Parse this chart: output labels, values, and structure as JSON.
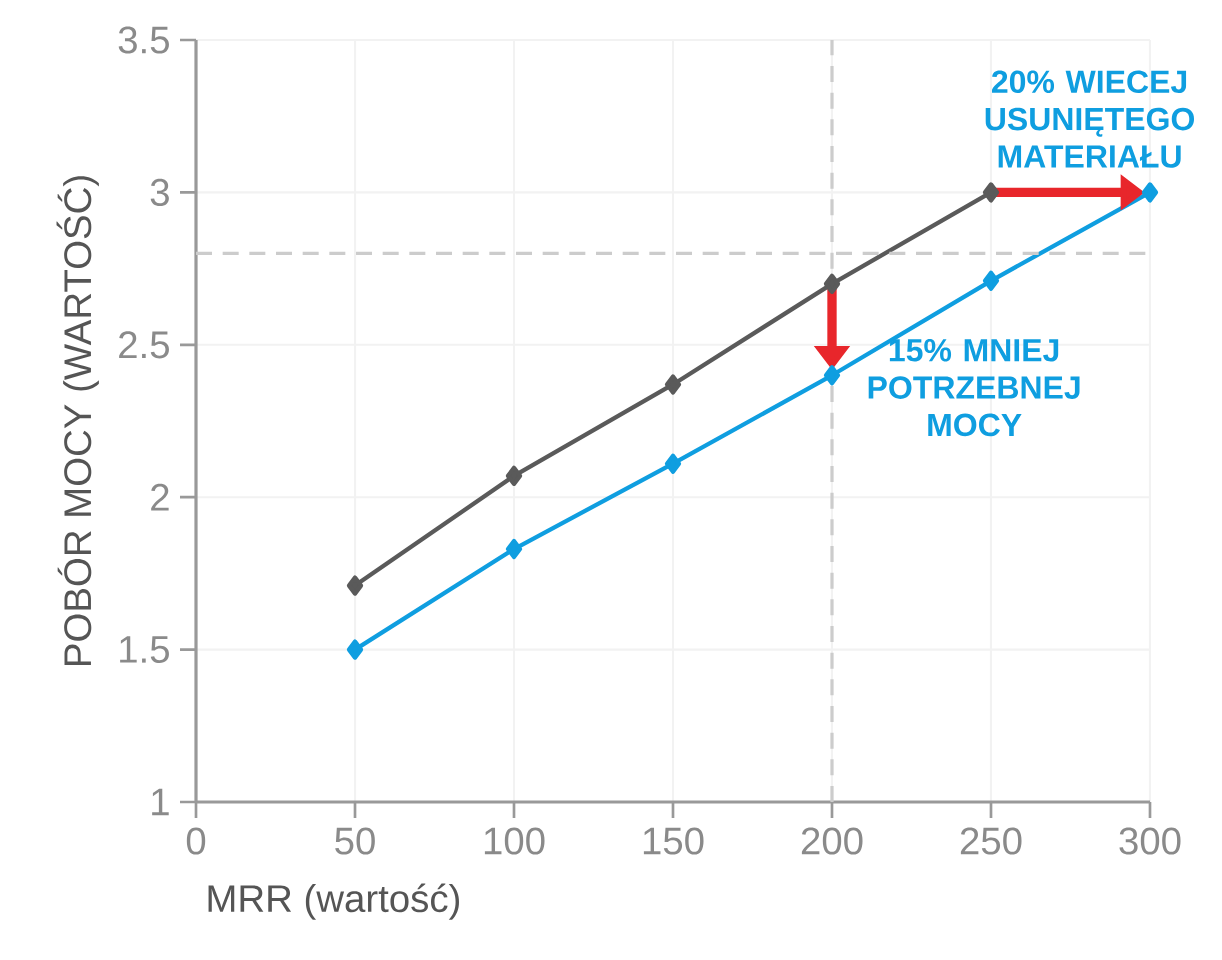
{
  "chart_data": {
    "type": "line",
    "xlabel": "MRR (wartość)",
    "ylabel": "POBÓR MOCY (WARTOŚĆ)",
    "xlim": [
      0,
      300
    ],
    "ylim": [
      1,
      3.5
    ],
    "xticks": [
      0,
      50,
      100,
      150,
      200,
      250,
      300
    ],
    "yticks": [
      1,
      1.5,
      2,
      2.5,
      3,
      3.5
    ],
    "grid": true,
    "marker": "diamond",
    "line_style": "solid",
    "series": [
      {
        "color": "#5a5a5a",
        "x": [
          50,
          100,
          150,
          200,
          250
        ],
        "values": [
          1.71,
          2.07,
          2.37,
          2.7,
          3.0
        ]
      },
      {
        "color": "#0f9ee0",
        "x": [
          50,
          100,
          150,
          200,
          250,
          300
        ],
        "values": [
          1.5,
          1.83,
          2.11,
          2.4,
          2.71,
          3.0
        ]
      }
    ],
    "ref_lines": [
      {
        "axis": "y",
        "value": 2.8,
        "color": "#cccccc",
        "line_style": "dashed"
      },
      {
        "axis": "x",
        "value": 200,
        "color": "#cccccc",
        "line_style": "dashed"
      }
    ],
    "annotations": [
      {
        "text": "20% WIECEJ USUNIĘTEGO MATERIAŁU",
        "x": 300,
        "y": 3.0
      },
      {
        "text": "15% MNIEJ POTRZEBNEJ MOCY",
        "x": 200,
        "y": 2.55
      }
    ]
  }
}
